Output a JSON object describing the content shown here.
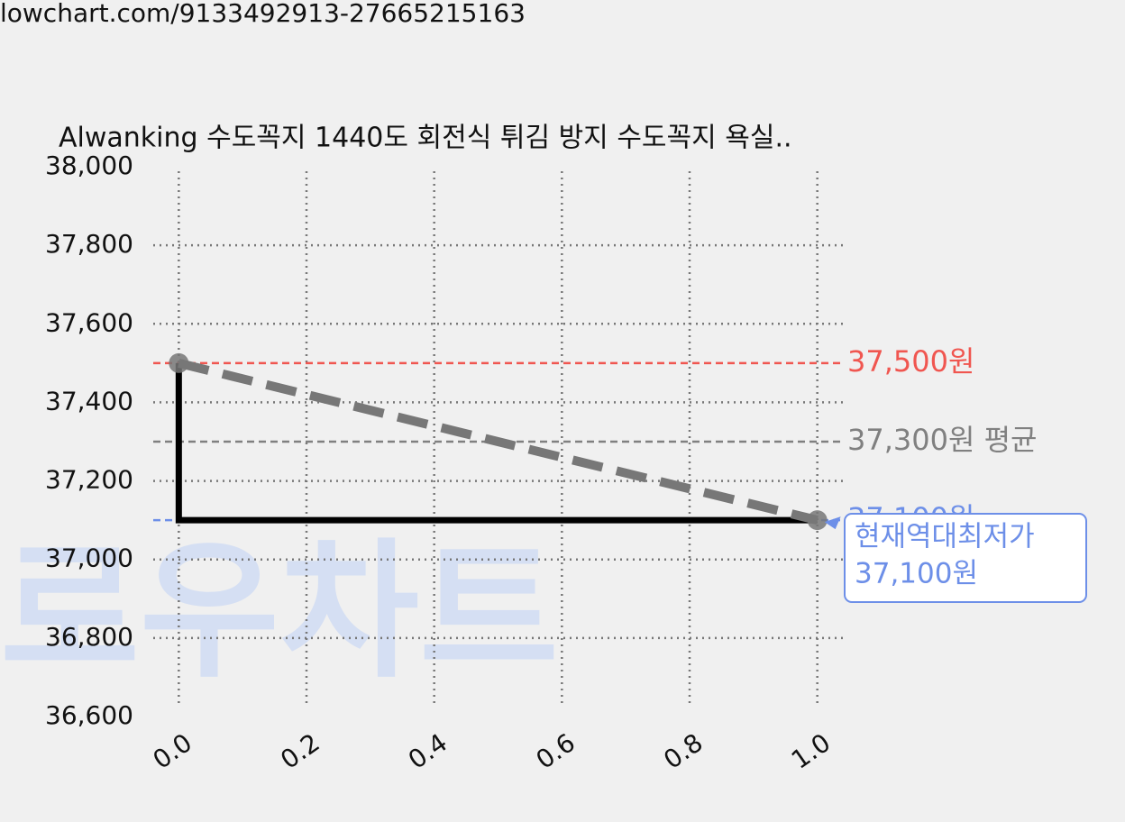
{
  "header": {
    "url": "lowchart.com/9133492913-27665215163"
  },
  "chart_data": {
    "type": "line",
    "title": "Alwanking 수도꼭지 1440도 회전식 튀김 방지 수도꼭지 욕실..",
    "watermark": "로우차트",
    "xlim": [
      -0.04,
      1.04
    ],
    "xticks": [
      {
        "value": 0,
        "label": "0.0"
      },
      0.2,
      0.4,
      0.6,
      0.8,
      {
        "value": 1,
        "label": "1.0"
      }
    ],
    "ylim": [
      36600,
      38000
    ],
    "yticks": [
      {
        "value": 36600,
        "label": "36,600"
      },
      {
        "value": 36800,
        "label": "36,800"
      },
      {
        "value": 37000,
        "label": "37,000"
      },
      {
        "value": 37200,
        "label": "37,200"
      },
      {
        "value": 37400,
        "label": "37,400"
      },
      {
        "value": 37600,
        "label": "37,600"
      },
      {
        "value": 37800,
        "label": "37,800"
      },
      {
        "value": 38000,
        "label": "38,000"
      }
    ],
    "grid": true,
    "series": [
      {
        "x": [
          0,
          0,
          1
        ],
        "values": [
          37500,
          37100,
          37100
        ],
        "color": "#000000",
        "style": "solid"
      },
      {
        "x": [
          0,
          1
        ],
        "values": [
          37500,
          37100
        ],
        "color": "#777777",
        "style": "dashed",
        "markers": true
      }
    ],
    "reference_lines": [
      {
        "value": 37500,
        "label": "37,500원",
        "color": "#f05650"
      },
      {
        "value": 37300,
        "label": "37,300원 평균",
        "color": "#808080"
      },
      {
        "value": 37100,
        "label": "37,100원",
        "color": "#6d8fe8"
      }
    ],
    "annotation": {
      "x": 1,
      "y": 37100,
      "lines": [
        "현재역대최저가",
        "37,100원"
      ],
      "color": "#6d8fe8"
    }
  }
}
